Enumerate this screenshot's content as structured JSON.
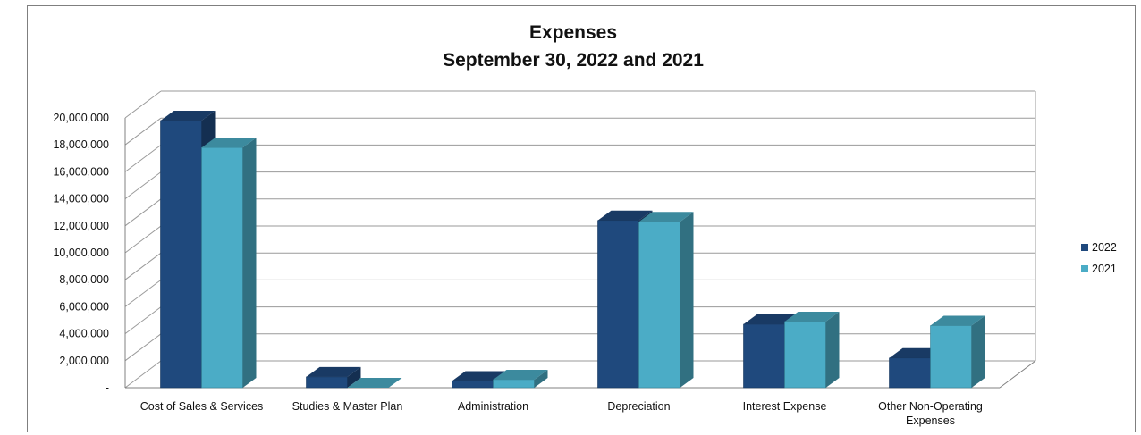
{
  "chart_data": {
    "type": "bar",
    "title_lines": [
      "Expenses",
      "September 30, 2022 and 2021"
    ],
    "categories": [
      [
        "Cost of Sales & Services"
      ],
      [
        "Studies & Master Plan"
      ],
      [
        "Administration"
      ],
      [
        "Depreciation"
      ],
      [
        "Interest Expense"
      ],
      [
        "Other Non-Operating",
        "Expenses"
      ]
    ],
    "series": [
      {
        "name": "2022",
        "color": "#1f497d",
        "values": [
          19800000,
          800000,
          500000,
          12400000,
          4700000,
          2200000
        ]
      },
      {
        "name": "2021",
        "color": "#4bacc6",
        "values": [
          17800000,
          0,
          600000,
          12300000,
          4900000,
          4600000
        ]
      }
    ],
    "ylim": [
      0,
      20000000
    ],
    "yticks": [
      0,
      2000000,
      4000000,
      6000000,
      8000000,
      10000000,
      12000000,
      14000000,
      16000000,
      18000000,
      20000000
    ],
    "ytick_labels": [
      "-",
      "2,000,000",
      "4,000,000",
      "6,000,000",
      "8,000,000",
      "10,000,000",
      "12,000,000",
      "14,000,000",
      "16,000,000",
      "18,000,000",
      "20,000,000"
    ],
    "grid": true,
    "legend_position": "right",
    "style": "3d-column"
  }
}
